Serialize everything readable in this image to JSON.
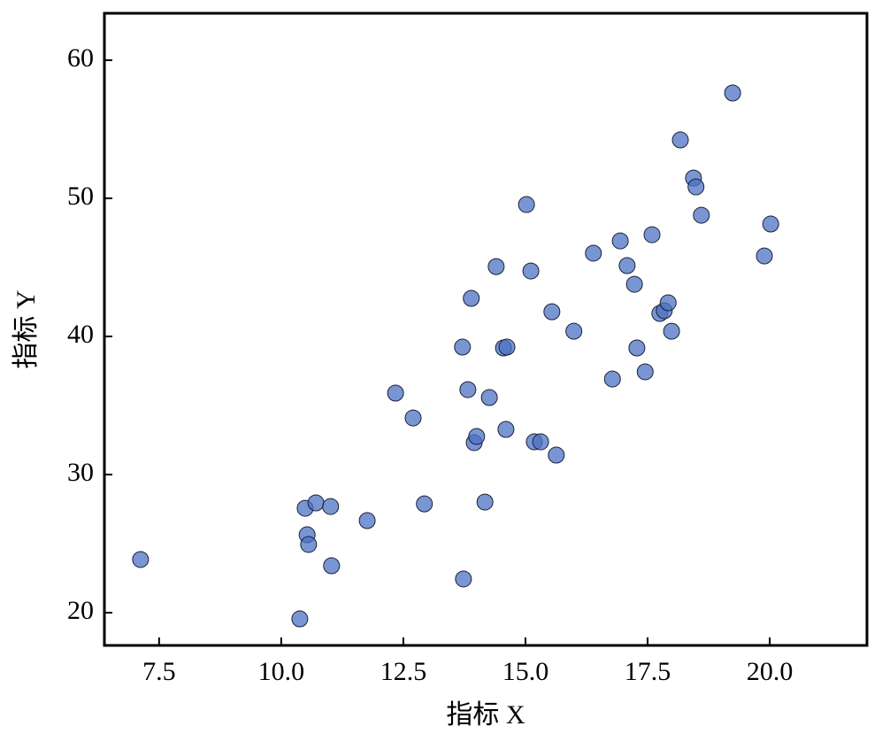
{
  "chart_data": {
    "type": "scatter",
    "x_label": "指标 X",
    "y_label": "指标 Y",
    "x": [
      7.12,
      10.38,
      10.49,
      10.71,
      11.01,
      10.53,
      10.56,
      11.03,
      11.76,
      12.34,
      12.7,
      12.93,
      13.71,
      13.89,
      13.82,
      13.73,
      13.95,
      14.0,
      14.17,
      14.26,
      14.4,
      14.55,
      14.62,
      14.6,
      15.02,
      15.11,
      15.18,
      15.31,
      15.54,
      15.63,
      15.99,
      16.39,
      16.78,
      16.94,
      17.08,
      17.23,
      17.28,
      17.45,
      17.59,
      17.75,
      17.84,
      17.92,
      17.99,
      18.17,
      18.44,
      18.49,
      18.6,
      19.24,
      19.89,
      20.02
    ],
    "values": [
      23.85,
      19.55,
      27.56,
      27.95,
      27.69,
      25.64,
      24.94,
      23.4,
      26.67,
      35.9,
      34.1,
      27.88,
      39.23,
      42.76,
      36.15,
      22.44,
      32.31,
      32.76,
      28.01,
      35.58,
      45.06,
      39.17,
      39.23,
      33.27,
      49.55,
      44.74,
      32.37,
      32.37,
      41.79,
      31.41,
      40.38,
      46.03,
      36.92,
      46.92,
      45.13,
      43.78,
      39.17,
      37.44,
      47.37,
      41.67,
      41.86,
      42.44,
      40.38,
      54.23,
      51.47,
      50.83,
      48.78,
      57.63,
      45.83,
      48.14
    ],
    "color": "#4c72c4",
    "xlim": [
      6.38,
      21.99
    ],
    "ylim": [
      17.63,
      63.4
    ],
    "xticks": [
      7.5,
      {
        "value": 10.0,
        "label": "10.0"
      },
      {
        "value": 12.5,
        "label": "12.5"
      },
      {
        "value": 15.0,
        "label": "15.0"
      },
      {
        "value": 17.5,
        "label": "17.5"
      },
      {
        "value": 20.0,
        "label": "20.0"
      }
    ],
    "yticks": [
      20,
      30,
      40,
      50,
      60
    ]
  }
}
